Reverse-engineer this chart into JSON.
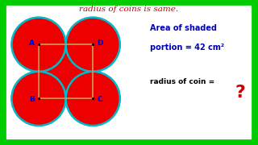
{
  "title": "radius of coins is same.",
  "title_color": "#cc0000",
  "bg_color": "#ffffff",
  "border_color": "#00cc00",
  "circle_color": "#00bbcc",
  "circle_lw": 1.8,
  "square_color": "#c8a050",
  "square_lw": 1.2,
  "shaded_color": "#ee0000",
  "label_color": "#0000cc",
  "area_text_line1": "Area of shaded",
  "area_text_line2": "portion = 42 cm²",
  "radius_text": "radius of coin = ",
  "question_mark": "?",
  "question_color": "#cc0000"
}
